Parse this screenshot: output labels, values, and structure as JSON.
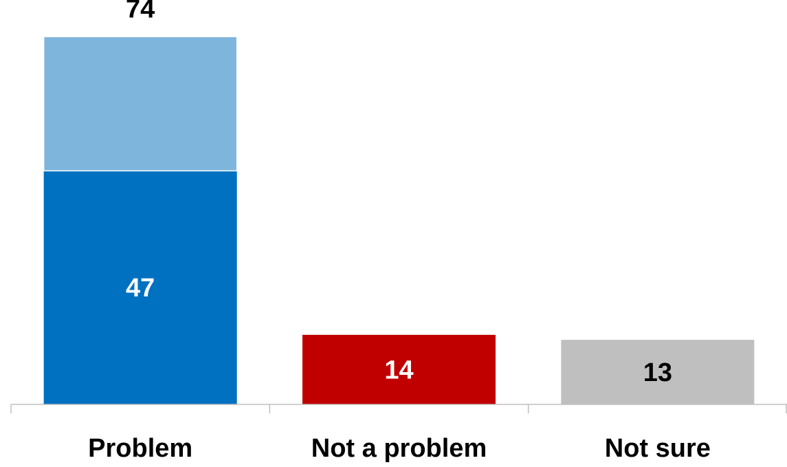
{
  "chart_data": {
    "type": "bar",
    "stacked": true,
    "categories": [
      "Problem",
      "Not a problem",
      "Not sure"
    ],
    "series": [
      {
        "values": [
          47,
          14,
          13
        ],
        "colors": [
          "#0070C0",
          "#C00000",
          "#BFBFBF"
        ],
        "label_colors": [
          "#FFFFFF",
          "#FFFFFF",
          "#000000"
        ]
      },
      {
        "values": [
          27,
          0,
          0
        ],
        "colors": [
          "#7EB5DD",
          null,
          null
        ]
      }
    ],
    "totals": [
      74,
      null,
      null
    ],
    "ylim": [
      0,
      80
    ],
    "title": "",
    "xlabel": "",
    "ylabel": "",
    "grid": false,
    "legend": "none"
  }
}
